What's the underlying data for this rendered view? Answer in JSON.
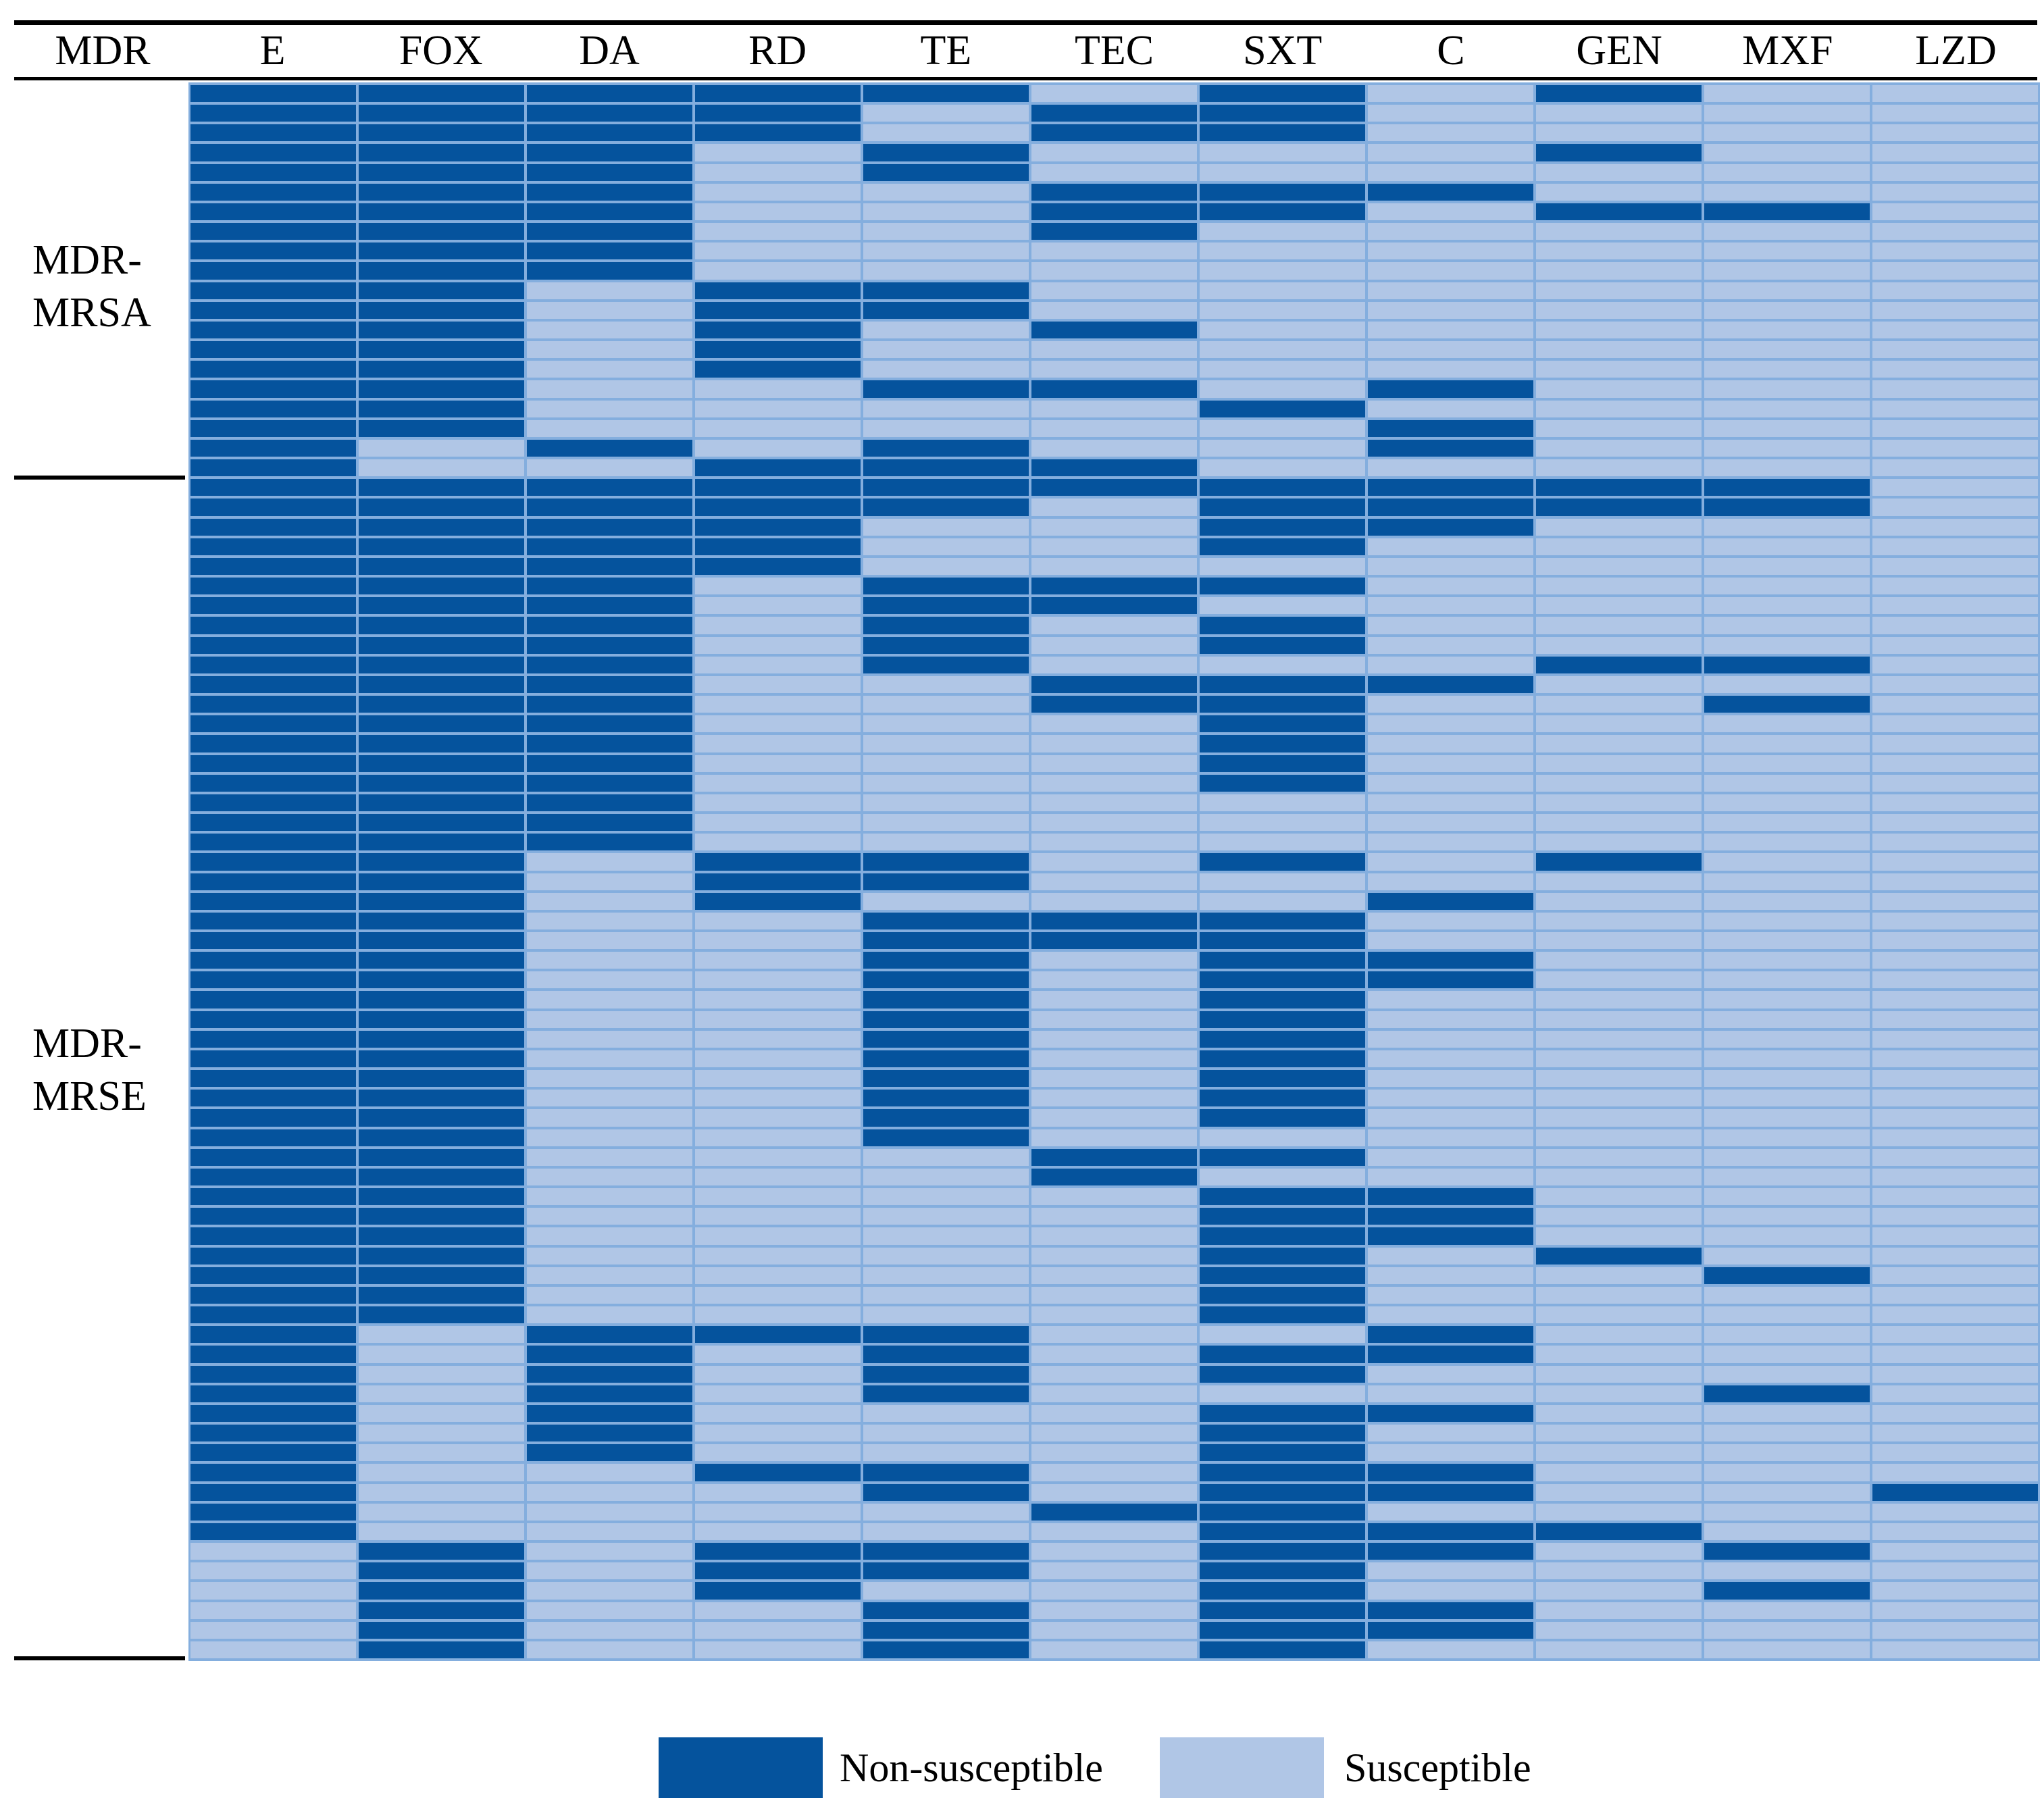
{
  "chart_data": {
    "type": "heatmap",
    "corner_label": "MDR",
    "columns": [
      "E",
      "FOX",
      "DA",
      "RD",
      "TE",
      "TEC",
      "SXT",
      "C",
      "GEN",
      "MXF",
      "LZD"
    ],
    "cell_codes": {
      "N": "Non-susceptible",
      "S": "Susceptible"
    },
    "colors": {
      "non_susceptible": "#05539d",
      "susceptible": "#b0c6e6",
      "grid": "#84aede",
      "line": "#000000",
      "background": "#ffffff"
    },
    "legend": [
      {
        "code": "N",
        "label": "Non-susceptible",
        "color": "#05539d"
      },
      {
        "code": "S",
        "label": "Susceptible",
        "color": "#b0c6e6"
      }
    ],
    "legend_position": "bottom-center",
    "row_groups": [
      {
        "label_lines": [
          "MDR-",
          "MRSA"
        ],
        "rows": [
          "NNNNNSNSNSS",
          "NNNNSNNSSSS",
          "NNNNSNNSSSS",
          "NNNSNSSSNSS",
          "NNNSNSSSSSS",
          "NNNSSNNNSSS",
          "NNNSSNNSNNS",
          "NNNSSNSSSSS",
          "NNNSSSSSSSS",
          "NNNSSSSSSSS",
          "NNSNNSSSSSS",
          "NNSNNSSSSSS",
          "NNSNSNSSSSS",
          "NNSNSSSSSSS",
          "NNSNSSSSSSS",
          "NNSSNNSNSSS",
          "NNSSSSNSSSS",
          "NNSSSSSNSSS",
          "NSNSNSSNSSS",
          "NSSNNNSSSSS"
        ]
      },
      {
        "label_lines": [
          "MDR-",
          "MRSE"
        ],
        "rows": [
          "NNNNNNNNNNS",
          "NNNNNSNNNNS",
          "NNNNSSNNSSS",
          "NNNNSSNSSSS",
          "NNNNSSSSSSS",
          "NNNSNNNSSSS",
          "NNNSNNSSSSS",
          "NNNSNSNSSSS",
          "NNNSNSNSSSS",
          "NNNSNSSSNNS",
          "NNNSSNNNSSS",
          "NNNSSNNSSNS",
          "NNNSSSNSSSS",
          "NNNSSSNSSSS",
          "NNNSSSNSSSS",
          "NNNSSSNSSSS",
          "NNNSSSSSSSS",
          "NNNSSSSSSSS",
          "NNNSSSSSSSS",
          "NNSNNSNSNSS",
          "NNSNNSSSSSS",
          "NNSNSSSNSSS",
          "NNSSNNNSSSS",
          "NNSSNNNSSSS",
          "NNSSNSNNSSS",
          "NNSSNSNNSSS",
          "NNSSNSNSSSS",
          "NNSSNSNSSSS",
          "NNSSNSNSSSS",
          "NNSSNSNSSSS",
          "NNSSNSNSSSS",
          "NNSSNSNSSSS",
          "NNSSNSNSSSS",
          "NNSSNSSSSSS",
          "NNSSSNNSSSS",
          "NNSSSNSSSSS",
          "NNSSSSNNSSS",
          "NNSSSSNNSSS",
          "NNSSSSNNSSS",
          "NNSSSSNSNSS",
          "NNSSSSNSSNS",
          "NNSSSSNSSSS",
          "NNSSSSNSSSS",
          "NSNNNSSNSSS",
          "NSNSNSNNSSS",
          "NSNSNSNSSSS",
          "NSNSNSSSSNS",
          "NSNSSSNNSSS",
          "NSNSSSNSSSS",
          "NSNSSSNSSSS",
          "NSSNNSNNSSS",
          "NSSSNSNNSSN",
          "NSSSSNNSSSS",
          "NSSSSSNNNSS",
          "SNSNNSNNSNS",
          "SNSNNSNSSSS",
          "SNSNSSNSSNS",
          "SNSSNSNNSSS",
          "SNSSNSNNSSS",
          "SNSSNSNSSSS"
        ]
      }
    ]
  }
}
